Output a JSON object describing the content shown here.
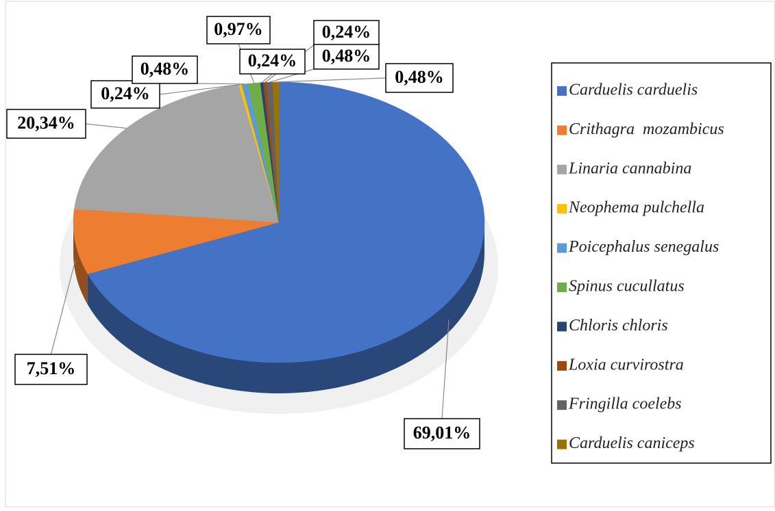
{
  "chart_data": {
    "type": "pie",
    "style": "3d",
    "categories": [
      "Carduelis carduelis",
      "Crithagra  mozambicus",
      "Linaria cannabina",
      "Neophema pulchella",
      "Poicephalus senegalus",
      "Spinus cucullatus",
      "Chloris chloris",
      "Loxia curvirostra",
      "Fringilla coelebs",
      "Carduelis caniceps"
    ],
    "values": [
      69.01,
      7.51,
      20.34,
      0.24,
      0.48,
      0.97,
      0.24,
      0.24,
      0.48,
      0.48
    ],
    "value_labels": [
      "69,01%",
      "7,51%",
      "20,34%",
      "0,24%",
      "0,48%",
      "0,97%",
      "0,24%",
      "0,24%",
      "0,48%",
      "0,48%"
    ],
    "colors": [
      "#4472c4",
      "#ed7d31",
      "#a5a5a5",
      "#ffc000",
      "#5b9bd5",
      "#70ad47",
      "#264478",
      "#9e480e",
      "#636363",
      "#997300"
    ],
    "legend": "right"
  }
}
